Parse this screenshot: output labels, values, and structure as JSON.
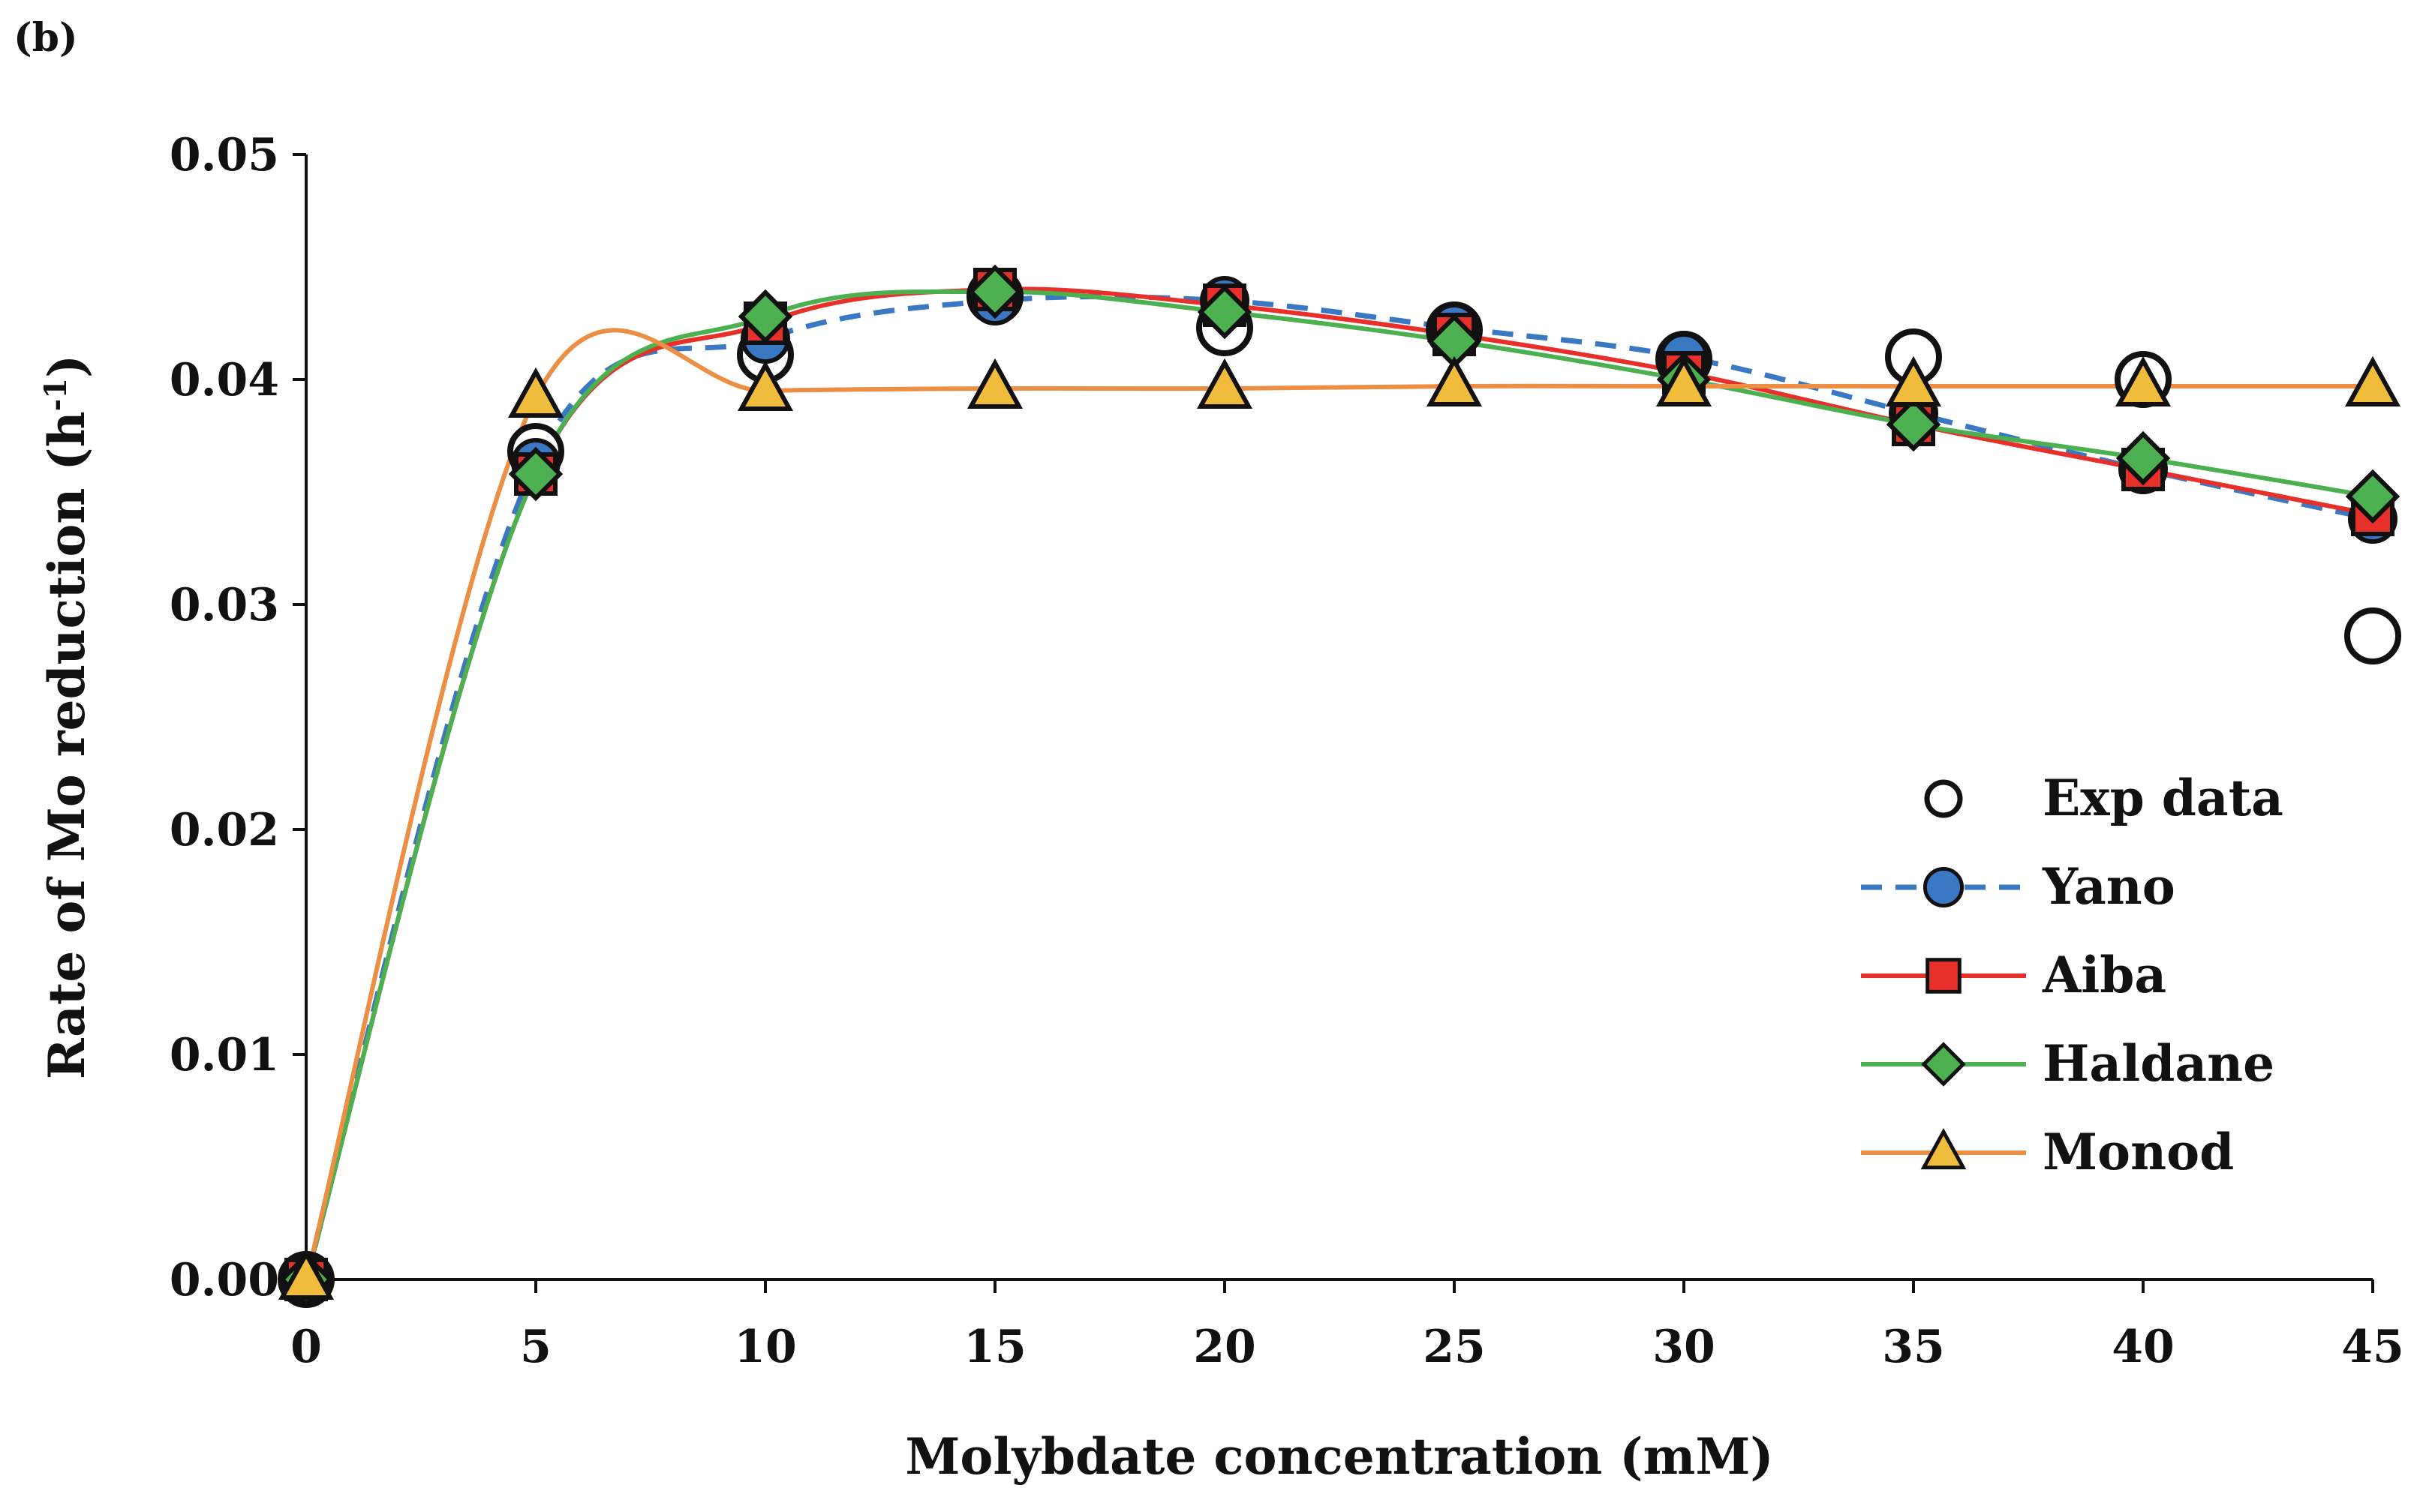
{
  "panel_label": "(b)",
  "chart_data": {
    "type": "line",
    "xlabel": "Molybdate concentration (mM)",
    "ylabel_main": "Rate of Mo reduction (h",
    "ylabel_sup": "-1",
    "ylabel_end": ")",
    "xlim": [
      0,
      45
    ],
    "ylim": [
      0,
      0.05
    ],
    "x_ticks": [
      0,
      5,
      10,
      15,
      20,
      25,
      30,
      35,
      40,
      45
    ],
    "x_tick_labels": [
      "0",
      "5",
      "10",
      "15",
      "20",
      "25",
      "30",
      "35",
      "40",
      "45"
    ],
    "y_ticks": [
      0,
      0.01,
      0.02,
      0.03,
      0.04,
      0.05
    ],
    "y_tick_labels": [
      "0.00",
      "0.01",
      "0.02",
      "0.03",
      "0.04",
      "0.05"
    ],
    "grid": false,
    "legend_position": "right",
    "x": [
      0,
      5,
      10,
      15,
      20,
      25,
      30,
      35,
      40,
      45
    ],
    "series": [
      {
        "name": "Exp data",
        "marker": "circle-open",
        "color": "#ffffff",
        "line": "none",
        "values": [
          0.0,
          0.0368,
          0.0411,
          0.0437,
          0.0423,
          0.0422,
          0.0409,
          0.041,
          0.04,
          0.0286
        ]
      },
      {
        "name": "Yano",
        "marker": "circle",
        "color": "#3b78c3",
        "line": "dashed",
        "values": [
          0.0,
          0.0363,
          0.0418,
          0.0435,
          0.0435,
          0.0423,
          0.041,
          0.0385,
          0.036,
          0.0338
        ]
      },
      {
        "name": "Aiba",
        "marker": "square",
        "color": "#e8302a",
        "line": "solid",
        "values": [
          0.0,
          0.0358,
          0.0425,
          0.044,
          0.0433,
          0.042,
          0.0403,
          0.038,
          0.036,
          0.034
        ]
      },
      {
        "name": "Haldane",
        "marker": "diamond",
        "color": "#4caf50",
        "line": "solid",
        "values": [
          0.0,
          0.0358,
          0.0428,
          0.0439,
          0.043,
          0.0417,
          0.04,
          0.038,
          0.0365,
          0.0348
        ]
      },
      {
        "name": "Monod",
        "marker": "triangle",
        "color": "#f0bc3c",
        "line": "solid",
        "line_color": "#ed8e45",
        "values": [
          0.0,
          0.0392,
          0.0395,
          0.0396,
          0.0396,
          0.0397,
          0.0397,
          0.0397,
          0.0397,
          0.0397
        ]
      }
    ]
  }
}
